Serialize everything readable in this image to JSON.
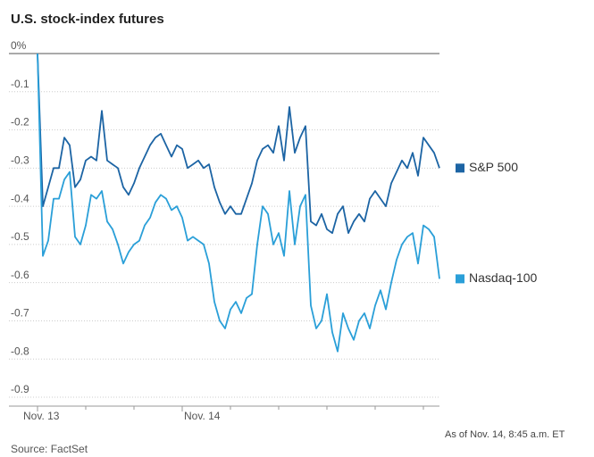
{
  "chart_data": {
    "type": "line",
    "title": "U.S. stock-index futures",
    "note": "As of Nov. 14, 8:45 a.m. ET",
    "source": "Source: FactSet",
    "x": [
      0,
      1,
      2,
      3,
      4,
      5,
      6,
      7,
      8,
      9,
      10,
      11,
      12,
      13,
      14,
      15,
      16,
      17,
      18,
      19,
      20,
      21,
      22,
      23,
      24,
      25,
      26,
      27,
      28,
      29,
      30,
      31,
      32,
      33,
      34,
      35,
      36,
      37,
      38,
      39,
      40,
      41,
      42,
      43,
      44,
      45,
      46,
      47,
      48,
      49,
      50,
      51,
      52,
      53,
      54,
      55,
      56,
      57,
      58,
      59,
      60,
      61,
      62,
      63,
      64,
      65,
      66,
      67,
      68,
      69,
      70,
      71,
      72,
      73,
      74,
      75
    ],
    "xlim": [
      0,
      75
    ],
    "xticks": [
      {
        "value": 0,
        "label": "Nov. 13"
      },
      {
        "value": 27,
        "label": "Nov. 14"
      }
    ],
    "minor_xticks": [
      9,
      18,
      36,
      45,
      54,
      63,
      72
    ],
    "ylim": [
      -0.9,
      0
    ],
    "yticks": [
      {
        "value": 0,
        "label": "0%"
      },
      -0.1,
      -0.2,
      -0.3,
      -0.4,
      -0.5,
      -0.6,
      -0.7,
      -0.8,
      -0.9
    ],
    "grid": true,
    "series": [
      {
        "name": "S&P 500",
        "color": "#1c64a4",
        "values": [
          0,
          -0.4,
          -0.35,
          -0.3,
          -0.3,
          -0.22,
          -0.24,
          -0.35,
          -0.33,
          -0.28,
          -0.27,
          -0.28,
          -0.15,
          -0.28,
          -0.29,
          -0.3,
          -0.35,
          -0.37,
          -0.34,
          -0.3,
          -0.27,
          -0.24,
          -0.22,
          -0.21,
          -0.24,
          -0.27,
          -0.24,
          -0.25,
          -0.3,
          -0.29,
          -0.28,
          -0.3,
          -0.29,
          -0.35,
          -0.39,
          -0.42,
          -0.4,
          -0.42,
          -0.42,
          -0.38,
          -0.34,
          -0.28,
          -0.25,
          -0.24,
          -0.26,
          -0.19,
          -0.28,
          -0.14,
          -0.26,
          -0.22,
          -0.19,
          -0.44,
          -0.45,
          -0.42,
          -0.46,
          -0.47,
          -0.42,
          -0.4,
          -0.47,
          -0.44,
          -0.42,
          -0.44,
          -0.38,
          -0.36,
          -0.38,
          -0.4,
          -0.34,
          -0.31,
          -0.28,
          -0.3,
          -0.26,
          -0.32,
          -0.22,
          -0.24,
          -0.26,
          -0.3
        ]
      },
      {
        "name": "Nasdaq-100",
        "color": "#2a9fd8",
        "values": [
          0,
          -0.53,
          -0.49,
          -0.38,
          -0.38,
          -0.33,
          -0.31,
          -0.48,
          -0.5,
          -0.45,
          -0.37,
          -0.38,
          -0.36,
          -0.44,
          -0.46,
          -0.5,
          -0.55,
          -0.52,
          -0.5,
          -0.49,
          -0.45,
          -0.43,
          -0.39,
          -0.37,
          -0.38,
          -0.41,
          -0.4,
          -0.43,
          -0.49,
          -0.48,
          -0.49,
          -0.5,
          -0.55,
          -0.65,
          -0.7,
          -0.72,
          -0.67,
          -0.65,
          -0.68,
          -0.64,
          -0.63,
          -0.5,
          -0.4,
          -0.42,
          -0.5,
          -0.47,
          -0.53,
          -0.36,
          -0.5,
          -0.4,
          -0.37,
          -0.66,
          -0.72,
          -0.7,
          -0.63,
          -0.73,
          -0.78,
          -0.68,
          -0.72,
          -0.75,
          -0.7,
          -0.68,
          -0.72,
          -0.66,
          -0.62,
          -0.67,
          -0.6,
          -0.54,
          -0.5,
          -0.48,
          -0.47,
          -0.55,
          -0.45,
          -0.46,
          -0.48,
          -0.59
        ]
      }
    ]
  }
}
